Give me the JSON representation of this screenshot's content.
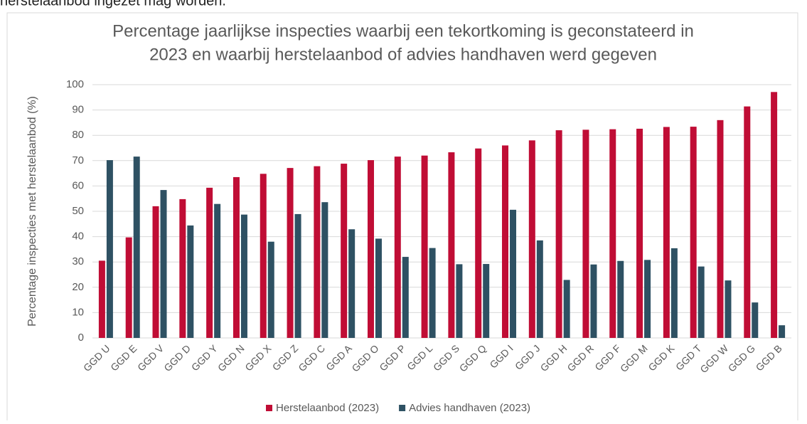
{
  "intro_text": "herstelaanbod ingezet mag worden.",
  "chart_data": {
    "type": "bar",
    "title": [
      "Percentage jaarlijkse inspecties waarbij een tekortkoming is geconstateerd in",
      "2023 en waarbij herstelaanbod of advies handhaven werd gegeven"
    ],
    "y_label": "Percentage inspecties met herstelaanbod (%)",
    "categories": [
      "GGD U",
      "GGD E",
      "GGD V",
      "GGD D",
      "GGD Y",
      "GGD N",
      "GGD X",
      "GGD Z",
      "GGD C",
      "GGD A",
      "GGD O",
      "GGD P",
      "GGD L",
      "GGD S",
      "GGD Q",
      "GGD I",
      "GGD J",
      "GGD H",
      "GGD R",
      "GGD F",
      "GGD M",
      "GGD K",
      "GGD T",
      "GGD W",
      "GGD G",
      "GGD B"
    ],
    "series": [
      {
        "name": "Herstelaanbod (2023)",
        "color": "#c00d35",
        "values": [
          30.5,
          39.7,
          52,
          54.8,
          59.3,
          63.5,
          64.8,
          67.1,
          67.8,
          68.8,
          70.2,
          71.6,
          72,
          73.3,
          74.8,
          76,
          78,
          82,
          82.2,
          82.4,
          82.6,
          83.3,
          83.4,
          86,
          91.4,
          97.1
        ]
      },
      {
        "name": "Advies handhaven (2023)",
        "color": "#2e5163",
        "values": [
          70.2,
          71.6,
          58.4,
          44.4,
          52.9,
          48.7,
          38,
          48.9,
          53.6,
          42.9,
          39.2,
          32,
          35.5,
          29.1,
          29.2,
          50.6,
          38.5,
          22.9,
          29,
          30.4,
          30.8,
          35.4,
          28.2,
          22.7,
          14,
          5
        ]
      }
    ],
    "ylim": [
      0,
      100
    ],
    "yticks": [
      0,
      10,
      20,
      30,
      40,
      50,
      60,
      70,
      80,
      90,
      100
    ],
    "grid": true,
    "legend": "bottom"
  }
}
